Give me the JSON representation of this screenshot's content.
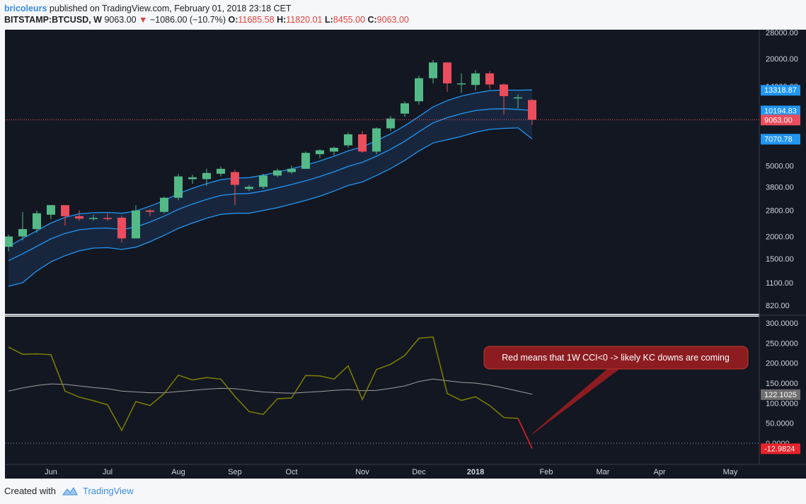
{
  "header": {
    "user": "bricoleurs",
    "published": "published on TradingView.com, February 01, 2018 23:18 CET",
    "symbol": "BITSTAMP:BTCUSD, W",
    "last": "9063.00",
    "change": "−1086.00 (−10.7%)",
    "o_label": "O:",
    "o": "11685.58",
    "h_label": "H:",
    "h": "11820.01",
    "l_label": "L:",
    "l": "8455.00",
    "c_label": "C:",
    "c": "9063.00"
  },
  "footer": {
    "created": "Created with",
    "brand": "TradingView"
  },
  "colors": {
    "bg": "#131722",
    "up": "#53b987",
    "down": "#eb4d5c",
    "band": "#2196f3",
    "cci": "#808000",
    "cci_ma": "#9e9e9e",
    "price_line": "#eb4d5c"
  },
  "chart_data": [
    {
      "type": "candlestick",
      "scale": "log",
      "yticks": [
        28000,
        20000,
        14000,
        10000,
        7000,
        5000,
        3800,
        2800,
        2000,
        1500,
        1100,
        820
      ],
      "ytick_labels": [
        "28000.00",
        "20000.00",
        "14000.00",
        "10000.00",
        "7000.00",
        "5000.00",
        "3800.00",
        "2800.00",
        "2000.00",
        "1500.00",
        "1100.00",
        "820.00"
      ],
      "xtick_labels": [
        {
          "label": "Jun",
          "week": 3
        },
        {
          "label": "Jul",
          "week": 7
        },
        {
          "label": "Aug",
          "week": 12
        },
        {
          "label": "Sep",
          "week": 16
        },
        {
          "label": "Oct",
          "week": 20
        },
        {
          "label": "Nov",
          "week": 25
        },
        {
          "label": "Dec",
          "week": 29
        },
        {
          "label": "2018",
          "week": 33
        },
        {
          "label": "Feb",
          "week": 38
        },
        {
          "label": "Mar",
          "week": 42
        },
        {
          "label": "Apr",
          "week": 46
        },
        {
          "label": "May",
          "week": 51
        }
      ],
      "candles": [
        {
          "o": 1750,
          "h": 2050,
          "l": 1650,
          "c": 2000
        },
        {
          "o": 2000,
          "h": 2750,
          "l": 1900,
          "c": 2200
        },
        {
          "o": 2200,
          "h": 2800,
          "l": 2100,
          "c": 2700
        },
        {
          "o": 2650,
          "h": 3000,
          "l": 2500,
          "c": 3000
        },
        {
          "o": 3000,
          "h": 3000,
          "l": 2300,
          "c": 2600
        },
        {
          "o": 2600,
          "h": 2800,
          "l": 2450,
          "c": 2520
        },
        {
          "o": 2520,
          "h": 2650,
          "l": 2450,
          "c": 2540
        },
        {
          "o": 2540,
          "h": 2700,
          "l": 2450,
          "c": 2520
        },
        {
          "o": 2550,
          "h": 2620,
          "l": 1850,
          "c": 1950
        },
        {
          "o": 1950,
          "h": 3000,
          "l": 1950,
          "c": 2800
        },
        {
          "o": 2800,
          "h": 2850,
          "l": 2600,
          "c": 2750
        },
        {
          "o": 2750,
          "h": 3350,
          "l": 2700,
          "c": 3300
        },
        {
          "o": 3300,
          "h": 4500,
          "l": 3200,
          "c": 4350
        },
        {
          "o": 4200,
          "h": 4450,
          "l": 3950,
          "c": 4300
        },
        {
          "o": 4200,
          "h": 4800,
          "l": 3850,
          "c": 4550
        },
        {
          "o": 4500,
          "h": 4950,
          "l": 4350,
          "c": 4800
        },
        {
          "o": 4600,
          "h": 4750,
          "l": 3000,
          "c": 3900
        },
        {
          "o": 3700,
          "h": 3900,
          "l": 3600,
          "c": 3800
        },
        {
          "o": 3800,
          "h": 4500,
          "l": 3700,
          "c": 4400
        },
        {
          "o": 4400,
          "h": 4800,
          "l": 4300,
          "c": 4700
        },
        {
          "o": 4600,
          "h": 5000,
          "l": 4500,
          "c": 4800
        },
        {
          "o": 4800,
          "h": 6000,
          "l": 4800,
          "c": 5900
        },
        {
          "o": 5800,
          "h": 6200,
          "l": 5500,
          "c": 6100
        },
        {
          "o": 6000,
          "h": 6400,
          "l": 5700,
          "c": 6300
        },
        {
          "o": 6500,
          "h": 7700,
          "l": 6300,
          "c": 7500
        },
        {
          "o": 7500,
          "h": 7800,
          "l": 5900,
          "c": 6000
        },
        {
          "o": 6000,
          "h": 8200,
          "l": 5800,
          "c": 8100
        },
        {
          "o": 8100,
          "h": 9500,
          "l": 7800,
          "c": 9200
        },
        {
          "o": 9800,
          "h": 11500,
          "l": 9400,
          "c": 11200
        },
        {
          "o": 11500,
          "h": 16000,
          "l": 11000,
          "c": 15500
        },
        {
          "o": 15500,
          "h": 19600,
          "l": 14500,
          "c": 19000
        },
        {
          "o": 19000,
          "h": 19100,
          "l": 13000,
          "c": 14500
        },
        {
          "o": 14500,
          "h": 16500,
          "l": 12800,
          "c": 14500
        },
        {
          "o": 14200,
          "h": 17200,
          "l": 13200,
          "c": 16500
        },
        {
          "o": 16500,
          "h": 17000,
          "l": 13500,
          "c": 14300
        },
        {
          "o": 14300,
          "h": 14500,
          "l": 9700,
          "c": 12300
        },
        {
          "o": 12000,
          "h": 12600,
          "l": 10500,
          "c": 12100
        },
        {
          "o": 11685.58,
          "h": 11820.01,
          "l": 8455,
          "c": 9063
        }
      ],
      "kc_upper": [
        1750,
        1950,
        2150,
        2380,
        2560,
        2680,
        2720,
        2730,
        2700,
        2780,
        2960,
        3180,
        3480,
        3730,
        3960,
        4170,
        4260,
        4280,
        4420,
        4600,
        4800,
        5030,
        5310,
        5650,
        6050,
        6380,
        6900,
        7550,
        8380,
        9450,
        10700,
        11600,
        12300,
        12800,
        13200,
        13300,
        13280,
        13318.87
      ],
      "kc_middle": [
        1460,
        1600,
        1760,
        1940,
        2080,
        2180,
        2220,
        2230,
        2190,
        2260,
        2410,
        2600,
        2840,
        3040,
        3230,
        3400,
        3470,
        3490,
        3600,
        3750,
        3920,
        4110,
        4340,
        4620,
        4950,
        5220,
        5650,
        6180,
        6860,
        7750,
        8700,
        9300,
        9800,
        10200,
        10400,
        10450,
        10350,
        10194.83
      ],
      "kc_lower": [
        1050,
        1100,
        1280,
        1440,
        1560,
        1660,
        1720,
        1730,
        1690,
        1740,
        1870,
        2030,
        2220,
        2380,
        2530,
        2660,
        2700,
        2700,
        2800,
        2900,
        3040,
        3190,
        3370,
        3600,
        3870,
        4050,
        4400,
        4820,
        5350,
        6050,
        6700,
        7000,
        7300,
        7700,
        8000,
        8100,
        8150,
        7070.78
      ],
      "annotation_labels": [
        "14000.00",
        "13318.87",
        "10194.83",
        "9063.00",
        "7070.78"
      ]
    },
    {
      "type": "line",
      "indicator": "CCI",
      "ylim": [
        -40,
        310
      ],
      "yticks": [
        300,
        250,
        200,
        150,
        100,
        50,
        0
      ],
      "ytick_labels": [
        "300.0000",
        "250.0000",
        "200.0000",
        "150.0000",
        "100.0000",
        "50.0000",
        "0.0000"
      ],
      "cci": [
        240,
        222,
        223,
        221,
        130,
        115,
        106,
        96,
        32,
        104,
        94,
        124,
        170,
        158,
        164,
        160,
        117,
        79,
        72,
        111,
        113,
        169,
        168,
        160,
        193,
        109,
        184,
        197,
        219,
        262,
        265,
        124,
        107,
        116,
        94,
        64,
        62,
        -12.9824
      ],
      "cci_ma": [
        130,
        138,
        144,
        148,
        147,
        143,
        139,
        136,
        130,
        128,
        126,
        126,
        129,
        132,
        135,
        137,
        136,
        132,
        128,
        126,
        125,
        127,
        129,
        132,
        134,
        131,
        132,
        137,
        143,
        154,
        160,
        156,
        152,
        150,
        145,
        138,
        130,
        122.1025
      ],
      "last_cci_label": "-12.9824",
      "last_ma_label": "122.1025",
      "annotation": "Red means that 1W CCI<0 -> likely KC downs are coming"
    }
  ]
}
